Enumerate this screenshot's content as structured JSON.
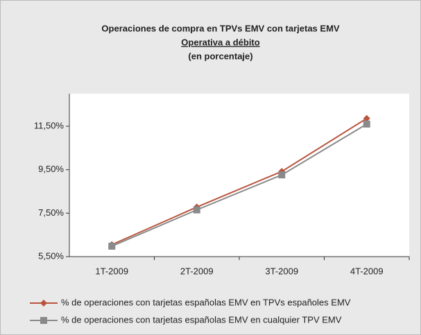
{
  "chart_data": {
    "type": "line",
    "title": "Operaciones de compra en TPVs EMV con tarjetas EMV",
    "subtitle": "Operativa a débito",
    "note": "(en porcentaje)",
    "categories": [
      "1T-2009",
      "2T-2009",
      "3T-2009",
      "4T-2009"
    ],
    "series": [
      {
        "name": "% de operaciones con tarjetas españolas EMV en TPVs españoles EMV",
        "color": "#b9553d",
        "marker": "diamond",
        "values": [
          6.05,
          7.78,
          9.42,
          11.86
        ]
      },
      {
        "name": "% de operaciones con tarjetas españolas EMV en cualquier TPV EMV",
        "color": "#8a8a8a",
        "marker": "square",
        "values": [
          5.98,
          7.65,
          9.26,
          11.6
        ]
      }
    ],
    "ylim": [
      5.5,
      13
    ],
    "yticks": [
      {
        "value": 5.5,
        "label": "5,50%"
      },
      {
        "value": 7.5,
        "label": "7,50%"
      },
      {
        "value": 9.5,
        "label": "9,50%"
      },
      {
        "value": 11.5,
        "label": "11,50%"
      }
    ],
    "legend": "bottom"
  }
}
